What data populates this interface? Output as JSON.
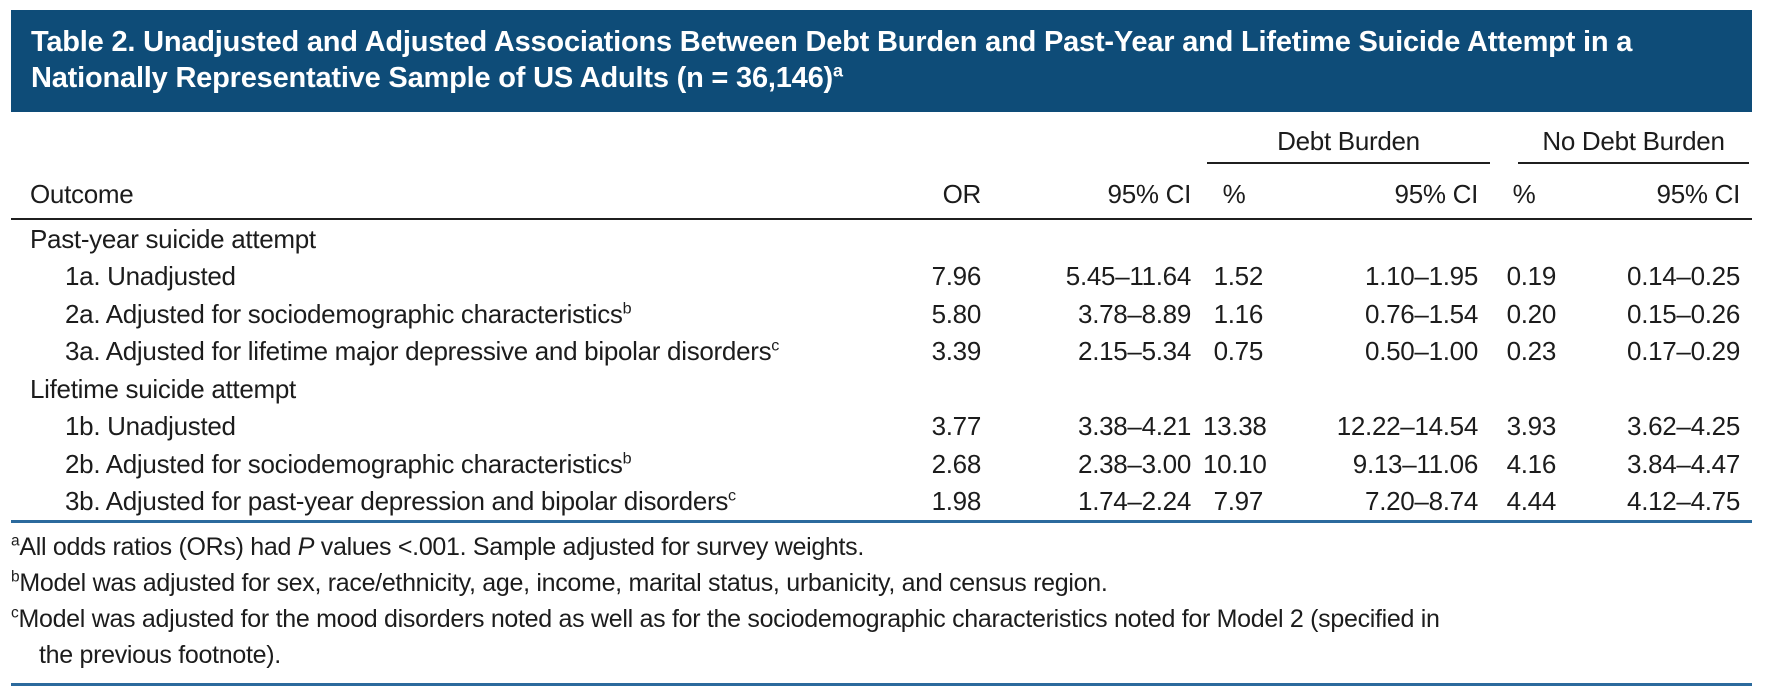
{
  "title": {
    "text": "Table 2. Unadjusted and Adjusted Associations Between Debt Burden and Past-Year and Lifetime Suicide Attempt in a Nationally Representative Sample of US Adults (n = 36,146)",
    "sup": "a"
  },
  "colors": {
    "title_bar_blue": "#0e4c78",
    "rule_blue": "#2b6a9d",
    "rule_dark": "#1f1f1f"
  },
  "table": {
    "outcome_header": "Outcome",
    "or_header": "OR",
    "ci_header": "95% CI",
    "pct_header": "%",
    "groups": {
      "debt": "Debt Burden",
      "no_debt": "No Debt Burden"
    },
    "rows": [
      {
        "label": "Past-year suicide attempt"
      },
      {
        "label": "1a. Unadjusted",
        "or": "7.96",
        "or_ci": "5.45–11.64",
        "debt_pct": "1.52",
        "debt_ci": "1.10–1.95",
        "nodebt_pct": "0.19",
        "nodebt_ci": "0.14–0.25"
      },
      {
        "label": "2a. Adjusted for sociodemographic characteristics",
        "sup": "b",
        "or": "5.80",
        "or_ci": "3.78–8.89",
        "debt_pct": "1.16",
        "debt_ci": "0.76–1.54",
        "nodebt_pct": "0.20",
        "nodebt_ci": "0.15–0.26"
      },
      {
        "label": "3a. Adjusted for lifetime major depressive and bipolar disorders",
        "sup": "c",
        "or": "3.39",
        "or_ci": "2.15–5.34",
        "debt_pct": "0.75",
        "debt_ci": "0.50–1.00",
        "nodebt_pct": "0.23",
        "nodebt_ci": "0.17–0.29"
      },
      {
        "label": "Lifetime suicide attempt"
      },
      {
        "label": "1b. Unadjusted",
        "or": "3.77",
        "or_ci": "3.38–4.21",
        "debt_pct": "13.38",
        "debt_ci": "12.22–14.54",
        "nodebt_pct": "3.93",
        "nodebt_ci": "3.62–4.25"
      },
      {
        "label": "2b. Adjusted for sociodemographic characteristics",
        "sup": "b",
        "or": "2.68",
        "or_ci": "2.38–3.00",
        "debt_pct": "10.10",
        "debt_ci": "9.13–11.06",
        "nodebt_pct": "4.16",
        "nodebt_ci": "3.84–4.47"
      },
      {
        "label": "3b. Adjusted for past-year depression and bipolar disorders",
        "sup": "c",
        "or": "1.98",
        "or_ci": "1.74–2.24",
        "debt_pct": "7.97",
        "debt_ci": "7.20–8.74",
        "nodebt_pct": "4.44",
        "nodebt_ci": "4.12–4.75"
      }
    ]
  },
  "footnotes": {
    "a": {
      "marker": "a",
      "pre": "All odds ratios (ORs) had ",
      "italic": "P",
      "post": " values <.001. Sample adjusted for survey weights."
    },
    "b": {
      "marker": "b",
      "text": "Model was adjusted for sex, race/ethnicity, age, income, marital status, urbanicity, and census region."
    },
    "c": {
      "marker": "c",
      "line1": "Model was adjusted for the mood disorders noted as well as for the sociodemographic characteristics noted for Model 2 (specified in",
      "line2": "the previous footnote)."
    }
  }
}
